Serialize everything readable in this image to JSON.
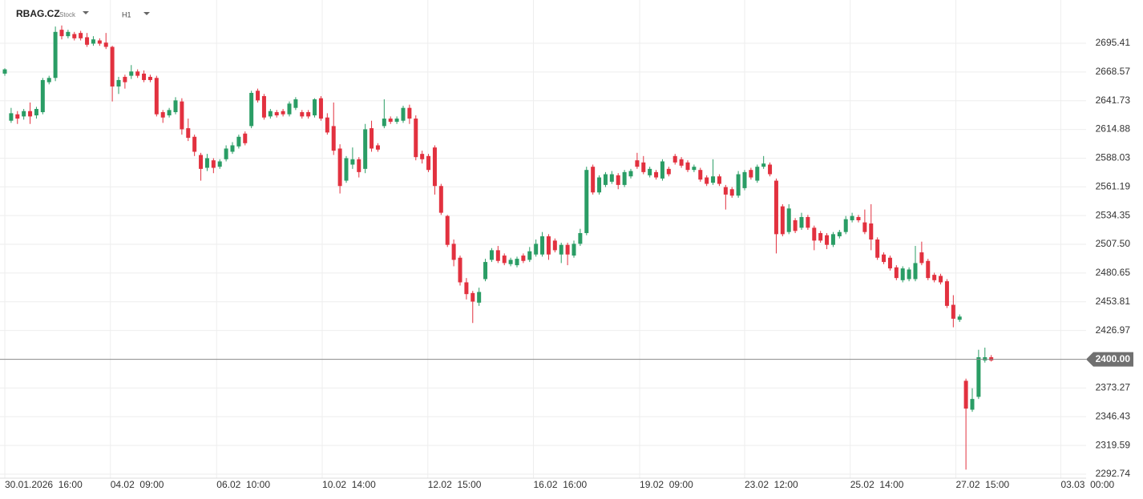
{
  "header": {
    "symbol": "RBAG.CZ",
    "asset_type": "Stock",
    "interval": "H1"
  },
  "chart_data": {
    "type": "candlestick",
    "up_color": "#2a9d65",
    "down_color": "#e2313f",
    "grid": true,
    "open": [
      2667,
      2623,
      2629,
      2627,
      2632,
      2628,
      2631,
      2659,
      2663,
      2708,
      2702,
      2704,
      2705,
      2701,
      2695,
      2698,
      2696,
      2692,
      2655,
      2664,
      2665,
      2669,
      2667,
      2664,
      2663,
      2631,
      2628,
      2631,
      2641,
      2616,
      2608,
      2591,
      2579,
      2586,
      2580,
      2587,
      2594,
      2599,
      2611,
      2618,
      2651,
      2646,
      2627,
      2631,
      2632,
      2629,
      2635,
      2631,
      2631,
      2628,
      2644,
      2626,
      2618,
      2597,
      2567,
      2582,
      2587,
      2578,
      2616,
      2600,
      2618,
      2625,
      2622,
      2623,
      2635,
      2625,
      2592,
      2590,
      2598,
      2562,
      2534,
      2508,
      2495,
      2472,
      2462,
      2453,
      2475,
      2493,
      2502,
      2497,
      2489,
      2488,
      2497,
      2493,
      2498,
      2498,
      2515,
      2511,
      2498,
      2507,
      2497,
      2508,
      2518,
      2580,
      2556,
      2563,
      2566,
      2572,
      2563,
      2571,
      2586,
      2584,
      2572,
      2575,
      2569,
      2578,
      2590,
      2587,
      2584,
      2577,
      2577,
      2570,
      2565,
      2571,
      2561,
      2559,
      2553,
      2560,
      2577,
      2567,
      2580,
      2582,
      2567,
      2543,
      2519,
      2530,
      2523,
      2533,
      2523,
      2518,
      2516,
      2507,
      2515,
      2519,
      2530,
      2533,
      2528,
      2527,
      2512,
      2498,
      2495,
      2486,
      2474,
      2475,
      2475,
      2500,
      2492,
      2479,
      2478,
      2473,
      2451,
      2437,
      2380,
      2353,
      2365,
      2399,
      2402
    ],
    "high": [
      2672,
      2635,
      2632,
      2634,
      2640,
      2636,
      2663,
      2665,
      2711,
      2712,
      2708,
      2706,
      2707,
      2705,
      2702,
      2700,
      2705,
      2693,
      2664,
      2666,
      2675,
      2671,
      2670,
      2666,
      2665,
      2633,
      2635,
      2645,
      2644,
      2625,
      2610,
      2593,
      2592,
      2588,
      2587,
      2600,
      2603,
      2610,
      2613,
      2651,
      2653,
      2648,
      2634,
      2633,
      2634,
      2641,
      2645,
      2633,
      2633,
      2644,
      2646,
      2630,
      2640,
      2601,
      2590,
      2598,
      2589,
      2620,
      2623,
      2602,
      2643,
      2627,
      2627,
      2637,
      2638,
      2628,
      2595,
      2592,
      2600,
      2564,
      2535,
      2512,
      2497,
      2476,
      2464,
      2467,
      2494,
      2504,
      2506,
      2499,
      2495,
      2496,
      2499,
      2505,
      2512,
      2519,
      2517,
      2513,
      2509,
      2509,
      2511,
      2522,
      2580,
      2582,
      2572,
      2575,
      2576,
      2574,
      2577,
      2578,
      2593,
      2590,
      2580,
      2577,
      2587,
      2580,
      2592,
      2589,
      2586,
      2582,
      2579,
      2572,
      2587,
      2573,
      2563,
      2561,
      2576,
      2577,
      2579,
      2582,
      2590,
      2584,
      2569,
      2545,
      2545,
      2532,
      2537,
      2535,
      2525,
      2520,
      2518,
      2519,
      2521,
      2534,
      2537,
      2535,
      2540,
      2545,
      2514,
      2500,
      2497,
      2488,
      2487,
      2486,
      2506,
      2510,
      2494,
      2481,
      2480,
      2475,
      2460,
      2442,
      2382,
      2373,
      2409,
      2411,
      2404
    ],
    "low": [
      2665,
      2621,
      2620,
      2624,
      2620,
      2625,
      2629,
      2657,
      2660,
      2699,
      2700,
      2698,
      2698,
      2692,
      2693,
      2693,
      2690,
      2641,
      2648,
      2653,
      2662,
      2663,
      2659,
      2659,
      2627,
      2621,
      2626,
      2629,
      2610,
      2604,
      2590,
      2567,
      2576,
      2574,
      2578,
      2585,
      2592,
      2597,
      2600,
      2616,
      2640,
      2624,
      2625,
      2626,
      2627,
      2627,
      2633,
      2625,
      2625,
      2626,
      2623,
      2610,
      2591,
      2555,
      2565,
      2578,
      2570,
      2574,
      2594,
      2594,
      2616,
      2620,
      2620,
      2621,
      2620,
      2586,
      2583,
      2575,
      2554,
      2535,
      2505,
      2487,
      2469,
      2456,
      2434,
      2450,
      2473,
      2491,
      2490,
      2488,
      2487,
      2486,
      2490,
      2491,
      2496,
      2496,
      2493,
      2500,
      2490,
      2488,
      2495,
      2506,
      2516,
      2554,
      2554,
      2561,
      2564,
      2559,
      2561,
      2569,
      2578,
      2573,
      2570,
      2568,
      2567,
      2571,
      2582,
      2579,
      2575,
      2575,
      2566,
      2562,
      2563,
      2562,
      2540,
      2551,
      2551,
      2558,
      2568,
      2565,
      2578,
      2571,
      2499,
      2515,
      2517,
      2518,
      2521,
      2521,
      2502,
      2509,
      2503,
      2505,
      2513,
      2517,
      2528,
      2528,
      2517,
      2502,
      2493,
      2489,
      2483,
      2474,
      2472,
      2473,
      2473,
      2488,
      2474,
      2472,
      2470,
      2448,
      2430,
      2435,
      2297,
      2351,
      2363,
      2397,
      2398
    ],
    "close": [
      2671,
      2630,
      2625,
      2632,
      2627,
      2634,
      2661,
      2663,
      2706,
      2702,
      2706,
      2700,
      2700,
      2694,
      2699,
      2695,
      2692,
      2655,
      2661,
      2659,
      2669,
      2665,
      2661,
      2661,
      2629,
      2626,
      2633,
      2642,
      2615,
      2607,
      2594,
      2578,
      2588,
      2579,
      2585,
      2597,
      2600,
      2608,
      2602,
      2649,
      2642,
      2626,
      2632,
      2628,
      2629,
      2639,
      2643,
      2627,
      2627,
      2643,
      2625,
      2612,
      2595,
      2562,
      2588,
      2587,
      2575,
      2615,
      2597,
      2596,
      2625,
      2622,
      2625,
      2635,
      2625,
      2589,
      2587,
      2577,
      2562,
      2537,
      2507,
      2493,
      2472,
      2461,
      2454,
      2463,
      2491,
      2502,
      2492,
      2490,
      2493,
      2494,
      2492,
      2501,
      2508,
      2515,
      2498,
      2502,
      2507,
      2498,
      2508,
      2518,
      2577,
      2556,
      2570,
      2573,
      2573,
      2563,
      2575,
      2576,
      2580,
      2575,
      2578,
      2570,
      2585,
      2573,
      2584,
      2581,
      2577,
      2580,
      2568,
      2564,
      2571,
      2564,
      2554,
      2553,
      2573,
      2575,
      2570,
      2580,
      2583,
      2573,
      2517,
      2517,
      2541,
      2520,
      2533,
      2523,
      2511,
      2511,
      2507,
      2517,
      2519,
      2531,
      2534,
      2530,
      2519,
      2512,
      2495,
      2491,
      2485,
      2476,
      2485,
      2484,
      2490,
      2490,
      2476,
      2474,
      2472,
      2450,
      2438,
      2440,
      2354,
      2363,
      2402,
      2402,
      2399
    ],
    "xlim": [
      -0.76,
      171
    ],
    "xticks": [
      {
        "value": 0,
        "label": "30.01.2026  16:00"
      },
      {
        "value": 16.7,
        "label": "04.02  09:00"
      },
      {
        "value": 33.5,
        "label": "06.02  10:00"
      },
      {
        "value": 50.2,
        "label": "10.02  14:00"
      },
      {
        "value": 66.9,
        "label": "12.02  15:00"
      },
      {
        "value": 83.6,
        "label": "16.02  16:00"
      },
      {
        "value": 100.4,
        "label": "19.02  09:00"
      },
      {
        "value": 117,
        "label": "23.02  12:00"
      },
      {
        "value": 133.7,
        "label": "25.02  14:00"
      },
      {
        "value": 150.4,
        "label": "27.02  15:00"
      },
      {
        "value": 167,
        "label": "03.03  00:00"
      }
    ],
    "ylim": [
      2289.0,
      2735.8
    ],
    "yticks": [
      2695.41,
      2668.57,
      2641.73,
      2614.88,
      2588.03,
      2561.19,
      2534.35,
      {
        "value": 2507.5,
        "label": "2507.50"
      },
      2480.65,
      2453.81,
      2426.97,
      2373.27,
      2346.43,
      2319.59,
      2292.74
    ],
    "current_price": {
      "value": 2400,
      "label": "2400.00"
    }
  }
}
